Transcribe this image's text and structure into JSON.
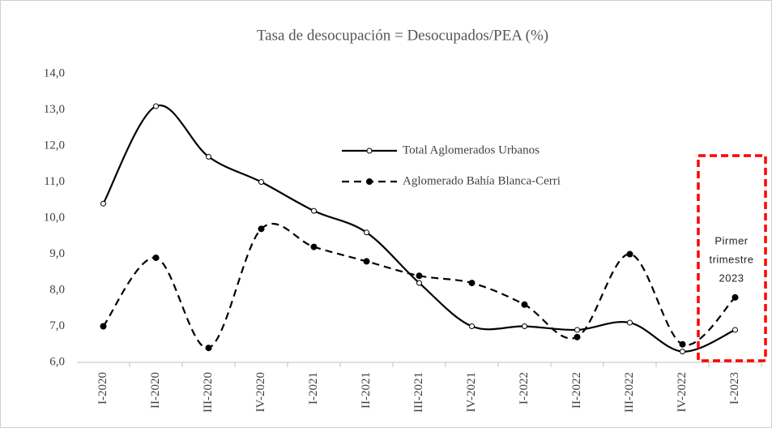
{
  "chart_data": {
    "type": "line",
    "title": "Tasa de desocupación  = Desocupados/PEA  (%)",
    "categories": [
      "I-2020",
      "II-2020",
      "III-2020",
      "IV-2020",
      "I-2021",
      "II-2021",
      "III-2021",
      "IV-2021",
      "I-2022",
      "II-2022",
      "III-2022",
      "IV-2022",
      "I-2023"
    ],
    "series": [
      {
        "name": "Total Aglomerados Urbanos",
        "color": "#000000",
        "values": [
          10.4,
          13.1,
          11.7,
          11.0,
          10.2,
          9.6,
          8.2,
          7.0,
          7.0,
          6.9,
          7.1,
          6.3,
          6.9
        ]
      },
      {
        "name": "Aglomerado Bahía Blanca-Cerri",
        "color": "#000000",
        "values": [
          7.0,
          8.9,
          6.4,
          9.7,
          9.2,
          8.8,
          8.4,
          8.2,
          7.6,
          6.7,
          9.0,
          6.5,
          7.8
        ]
      }
    ],
    "ylim": [
      6,
      14
    ],
    "yticks": [
      {
        "value": 6,
        "label": "6,0"
      },
      {
        "value": 7,
        "label": "7,0"
      },
      {
        "value": 8,
        "label": "8,0"
      },
      {
        "value": 9,
        "label": "9,0"
      },
      {
        "value": 10,
        "label": "10,0"
      },
      {
        "value": 11,
        "label": "11,0"
      },
      {
        "value": 12,
        "label": "12,0"
      },
      {
        "value": 13,
        "label": "13,0"
      },
      {
        "value": 14,
        "label": "14,0"
      }
    ],
    "annotation": [
      "Pirmer",
      "trimestre",
      "2023"
    ],
    "annotation_color": "#ff0000"
  }
}
